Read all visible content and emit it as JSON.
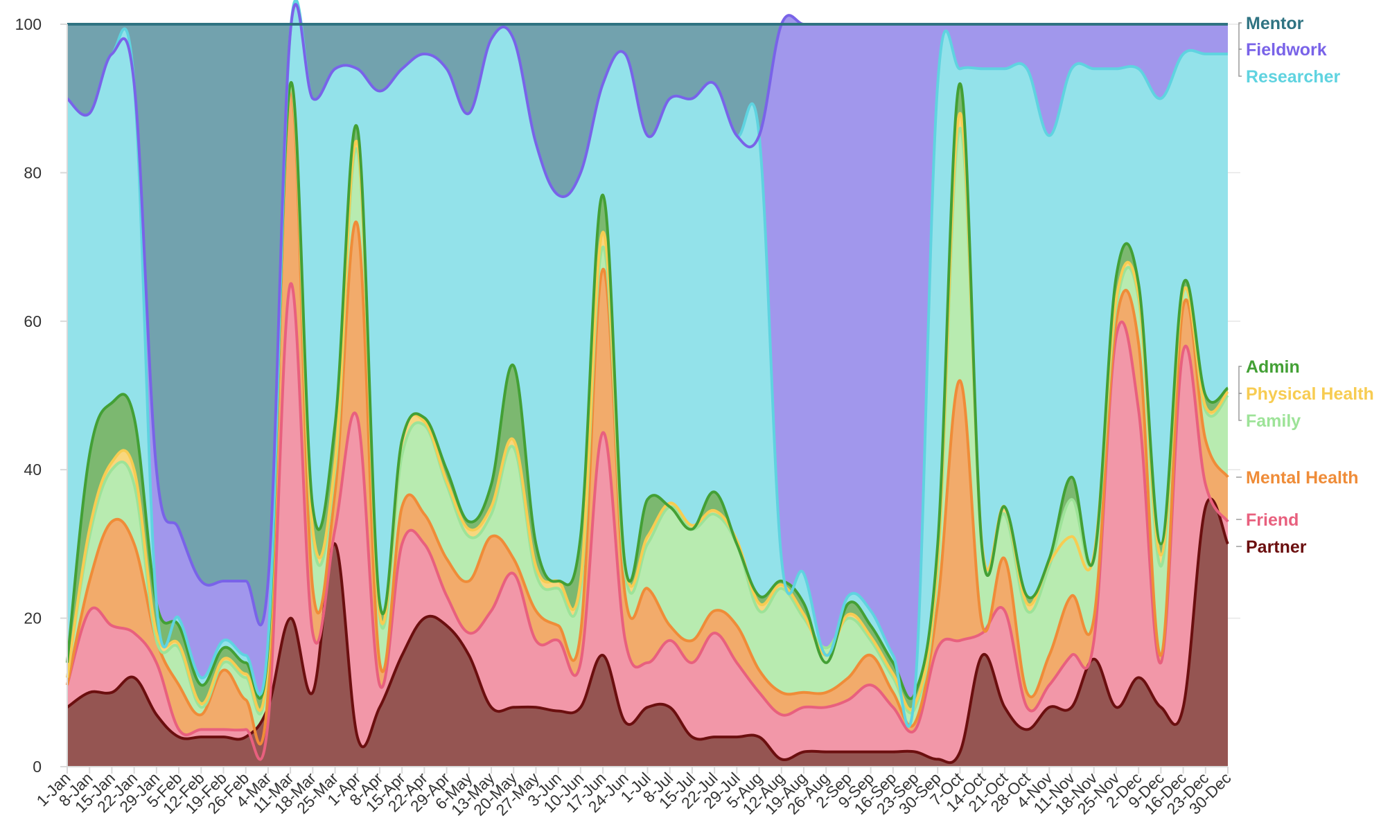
{
  "chart_data": {
    "type": "area",
    "stacked": true,
    "normalized": true,
    "ylim": [
      0,
      100
    ],
    "y_ticks": [
      0,
      20,
      40,
      60,
      80,
      100
    ],
    "grid": true,
    "legend_position": "right",
    "x": [
      "1-Jan",
      "8-Jan",
      "15-Jan",
      "22-Jan",
      "29-Jan",
      "5-Feb",
      "12-Feb",
      "19-Feb",
      "26-Feb",
      "4-Mar",
      "11-Mar",
      "18-Mar",
      "25-Mar",
      "1-Apr",
      "8-Apr",
      "15-Apr",
      "22-Apr",
      "29-Apr",
      "6-May",
      "13-May",
      "20-May",
      "27-May",
      "3-Jun",
      "10-Jun",
      "17-Jun",
      "24-Jun",
      "1-Jul",
      "8-Jul",
      "15-Jul",
      "22-Jul",
      "29-Jul",
      "5-Aug",
      "12-Aug",
      "19-Aug",
      "26-Aug",
      "2-Sep",
      "9-Sep",
      "16-Sep",
      "23-Sep",
      "30-Sep",
      "7-Oct",
      "14-Oct",
      "21-Oct",
      "28-Oct",
      "4-Nov",
      "11-Nov",
      "18-Nov",
      "25-Nov",
      "2-Dec",
      "9-Dec",
      "16-Dec",
      "23-Dec",
      "30-Dec"
    ],
    "series": [
      {
        "name": "Partner",
        "color": "#6b0f0f",
        "fill": "#955552",
        "cumulative": [
          8,
          10,
          10,
          12,
          7,
          4,
          4,
          4,
          4,
          8,
          20,
          10,
          30,
          4,
          8,
          15,
          20,
          19,
          15,
          8,
          8,
          8,
          7.5,
          8,
          15,
          6,
          8,
          8,
          4,
          4,
          4,
          4,
          1,
          2,
          2,
          2,
          2,
          2,
          2,
          1,
          2,
          15,
          8,
          5,
          8,
          8,
          14.5,
          8,
          12,
          8,
          8,
          35,
          30
        ]
      },
      {
        "name": "Friend",
        "color": "#e8607e",
        "fill": "#f297a8",
        "cumulative": [
          11,
          21,
          19,
          18,
          14,
          5,
          5,
          5,
          5,
          6,
          65,
          18,
          32,
          47,
          11,
          30,
          30,
          23,
          18,
          21,
          26,
          17,
          17,
          14,
          45,
          17,
          14,
          17,
          14,
          18,
          14,
          10,
          7,
          8,
          8,
          9,
          11,
          8,
          5,
          16,
          17,
          18,
          21,
          8,
          11,
          15,
          17,
          58,
          48,
          14,
          56,
          38,
          33
        ]
      },
      {
        "name": "Mental Health",
        "color": "#ef8c38",
        "fill": "#f2ab6b",
        "cumulative": [
          11,
          25,
          33,
          30,
          17,
          11,
          7,
          13,
          9,
          10,
          91,
          24,
          37,
          73,
          14,
          35,
          34,
          28,
          25,
          31,
          28,
          21,
          19,
          18,
          67,
          23,
          24,
          19,
          17,
          21,
          19,
          13,
          10,
          10,
          10,
          12,
          15,
          10,
          6,
          22,
          52,
          19,
          28,
          10,
          15,
          23,
          20,
          60,
          57,
          15,
          62,
          44,
          39
        ]
      },
      {
        "name": "Family",
        "color": "#9de398",
        "fill": "#b8ebb0",
        "cumulative": [
          12,
          31,
          40,
          38,
          17,
          16,
          8,
          14,
          12,
          14,
          91.5,
          31,
          40,
          83,
          20,
          42,
          46,
          38,
          31,
          34,
          43,
          26,
          24,
          24,
          70,
          26,
          30,
          35,
          32,
          34,
          30,
          21,
          24,
          20,
          16,
          20,
          17,
          12,
          8,
          27,
          86,
          29,
          34,
          21,
          27,
          36,
          28,
          62,
          63,
          27,
          64,
          48,
          50
        ]
      },
      {
        "name": "Physical Health",
        "color": "#f7cc52",
        "fill": "#f8d77e",
        "cumulative": [
          12,
          32,
          41,
          40,
          18,
          16.5,
          8.5,
          14.5,
          12.5,
          14.5,
          92,
          32,
          41,
          84,
          20.5,
          44,
          46.5,
          38.5,
          32,
          35,
          44,
          27,
          25,
          25,
          72,
          27,
          31,
          35.5,
          32.5,
          34.5,
          30.5,
          22,
          24.5,
          20.5,
          15,
          20.5,
          17.5,
          12.5,
          8.5,
          28,
          88,
          29.5,
          35,
          22,
          27.5,
          31,
          28.5,
          63,
          63.5,
          28.5,
          64,
          48.5,
          50.5
        ]
      },
      {
        "name": "Admin",
        "color": "#43a035",
        "fill": "#7cb870",
        "cumulative": [
          14,
          42,
          49,
          47,
          22,
          19,
          11,
          16,
          14,
          16,
          92,
          35,
          46,
          86,
          22,
          44,
          47,
          40,
          33,
          38,
          54,
          30,
          25,
          31,
          77,
          27,
          36,
          35,
          32,
          37,
          30,
          23,
          25,
          22,
          14,
          22,
          19,
          14,
          10,
          30,
          92,
          29,
          35,
          23,
          28,
          39,
          28,
          66,
          65,
          30,
          65,
          50,
          51
        ]
      },
      {
        "name": "Researcher",
        "color": "#5fd3e0",
        "fill": "#93e2ea",
        "cumulative": [
          90,
          88,
          96,
          92,
          22,
          20,
          12,
          17,
          15,
          17,
          99,
          90,
          94,
          94,
          91,
          94,
          96,
          94,
          88,
          98,
          98,
          84,
          77,
          80,
          92,
          96,
          85,
          90,
          90,
          92,
          85,
          85,
          28,
          26,
          15,
          23,
          21,
          15,
          11,
          92,
          94,
          94,
          94,
          94,
          85,
          94,
          94,
          94,
          94,
          90,
          96,
          96,
          96
        ]
      },
      {
        "name": "Fieldwork",
        "color": "#7963e8",
        "fill": "#a197ec",
        "cumulative": [
          90,
          88,
          96,
          92,
          40,
          32,
          25,
          25,
          25,
          25,
          99,
          90,
          94,
          94,
          91,
          94,
          96,
          94,
          88,
          98,
          98,
          84,
          77,
          80,
          92,
          96,
          85,
          90,
          90,
          92,
          85,
          85,
          100,
          100,
          100,
          100,
          100,
          100,
          100,
          100,
          100,
          100,
          100,
          100,
          100,
          100,
          100,
          100,
          100,
          100,
          100,
          100,
          100
        ]
      },
      {
        "name": "Mentor",
        "color": "#2f7382",
        "fill": "#72a2ae",
        "cumulative": [
          100,
          100,
          100,
          100,
          100,
          100,
          100,
          100,
          100,
          100,
          100,
          100,
          100,
          100,
          100,
          100,
          100,
          100,
          100,
          100,
          100,
          100,
          100,
          100,
          100,
          100,
          100,
          100,
          100,
          100,
          100,
          100,
          100,
          100,
          100,
          100,
          100,
          100,
          100,
          100,
          100,
          100,
          100,
          100,
          100,
          100,
          100,
          100,
          100,
          100,
          100,
          100,
          100
        ]
      }
    ],
    "legend_order": [
      "Mentor",
      "Fieldwork",
      "Researcher",
      "Admin",
      "Physical Health",
      "Family",
      "Mental Health",
      "Friend",
      "Partner"
    ]
  }
}
